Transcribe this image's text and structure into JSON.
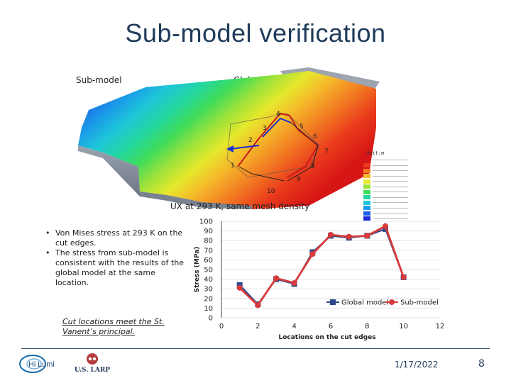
{
  "slide": {
    "title": "Sub-model verification",
    "submodel_label": "Sub-model",
    "global_label": "Global model",
    "caption": "UX at 293 K, same mesh density",
    "bullets": [
      "Von Mises stress at 293 K on the cut edges.",
      "The stress from sub-model is consistent with the results of the global model at the same location."
    ],
    "cut_note": "Cut locations meet the St. Vanent’s principal.",
    "date": "1/17/2022",
    "page": "8",
    "logo_text": "U.S. LARP"
  },
  "fea": {
    "location_numbers": [
      "1",
      "2",
      "3",
      "4",
      "5",
      "6",
      "7",
      "8",
      "9",
      "10"
    ],
    "legend_unit": "Unit:m",
    "colors": [
      "#1c2bd6",
      "#1f5fe6",
      "#1a9be8",
      "#1ec7d8",
      "#22d6a0",
      "#3fdc5a",
      "#9de23a",
      "#e6e82c",
      "#f5b82a",
      "#f27a22",
      "#ea3b1c",
      "#d61515"
    ]
  },
  "chart_data": {
    "type": "line",
    "xlabel": "Locations on the cut edges",
    "ylabel": "Stress (MPa)",
    "xlim": [
      0,
      12
    ],
    "ylim": [
      0,
      100
    ],
    "xticks": [
      0,
      2,
      4,
      6,
      8,
      10,
      12
    ],
    "yticks": [
      0,
      10,
      20,
      30,
      40,
      50,
      60,
      70,
      80,
      90,
      100
    ],
    "x": [
      1,
      2,
      3,
      4,
      5,
      6,
      7,
      8,
      9,
      10
    ],
    "series": [
      {
        "name": "Global model",
        "color": "#2e4a8a",
        "marker": "square",
        "values": [
          34,
          14,
          40,
          35,
          68,
          85,
          83,
          85,
          92,
          42
        ]
      },
      {
        "name": "Sub-model",
        "color": "#d83a3a",
        "marker": "circle",
        "values": [
          31,
          13,
          41,
          36,
          66,
          86,
          84,
          85,
          95,
          42
        ]
      }
    ]
  }
}
